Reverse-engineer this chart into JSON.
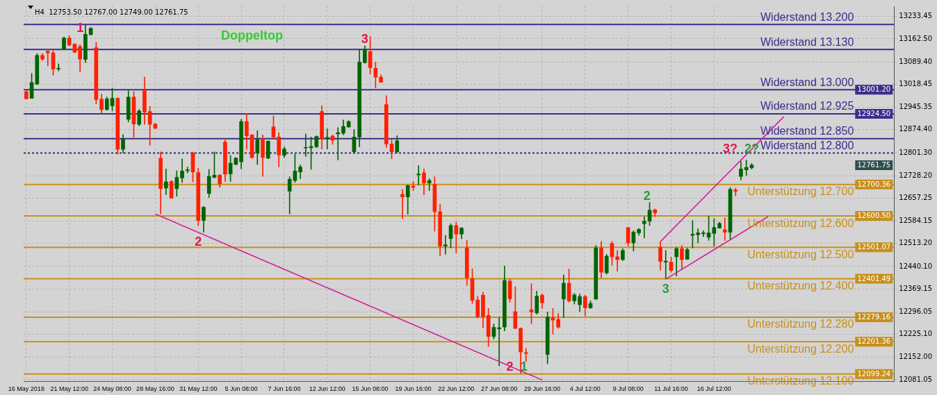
{
  "chart_data": {
    "type": "candlestick",
    "categories": [
      "16 May 2018",
      null,
      null,
      null,
      null,
      null,
      null,
      null,
      "21 May 12:00",
      null,
      null,
      null,
      null,
      null,
      null,
      null,
      "24 May 08:00",
      null,
      null,
      null,
      null,
      null,
      null,
      null,
      "28 May 16:00",
      null,
      null,
      null,
      null,
      null,
      null,
      null,
      "31 May 12:00",
      null,
      null,
      null,
      null,
      null,
      null,
      null,
      "5 Jun 08:00",
      null,
      null,
      null,
      null,
      null,
      null,
      null,
      "7 Jun 16:00",
      null,
      null,
      null,
      null,
      null,
      null,
      null,
      "12 Jun 12:00",
      null,
      null,
      null,
      null,
      null,
      null,
      null,
      "15 Jun 08:00",
      null,
      null,
      null,
      null,
      null,
      null,
      null,
      "19 Jun 16:00",
      null,
      null,
      null,
      null,
      null,
      null,
      null,
      "22 Jun 12:00",
      null,
      null,
      null,
      null,
      null,
      null,
      null,
      "27 Jun 08:00",
      null,
      null,
      null,
      null,
      null,
      null,
      null,
      "29 Jun 16:00",
      null,
      null,
      null,
      null,
      null,
      null,
      null,
      "4 Jul 12:00",
      null,
      null,
      null,
      null,
      null,
      null,
      null,
      "9 Jul 08:00",
      null,
      null,
      null,
      null,
      null,
      null,
      null,
      "11 Jul 16:00",
      null,
      null,
      null,
      null,
      null,
      null,
      null,
      "16 Jul 12:00",
      null,
      null,
      null,
      null,
      null,
      null,
      null,
      null,
      null,
      null,
      null,
      null,
      null,
      null,
      null,
      null,
      null,
      null,
      null,
      null,
      null,
      null,
      null,
      null,
      null,
      null,
      null,
      null,
      null,
      null,
      null,
      null,
      null
    ],
    "ohlc": [
      [
        12995,
        12999,
        12972,
        12972
      ],
      [
        12974,
        13053,
        12974,
        13024
      ],
      [
        13019,
        13116,
        13017,
        13110
      ],
      [
        13110,
        13116,
        13093,
        13098
      ],
      [
        13123,
        13128,
        13077,
        13118
      ],
      [
        13118,
        13126,
        13047,
        13067
      ],
      [
        13067,
        13083,
        13061,
        13069
      ],
      [
        13130,
        13169,
        13128,
        13165
      ],
      [
        13165,
        13173,
        13140,
        13143
      ],
      [
        13146,
        13148,
        13118,
        13120
      ],
      [
        13138,
        13144,
        13057,
        13098
      ],
      [
        13097,
        13206,
        13087,
        13177
      ],
      [
        13176,
        13199,
        13174,
        13196
      ],
      [
        13134,
        13152,
        12956,
        12970
      ],
      [
        12972,
        12987,
        12926,
        12938
      ],
      [
        12938,
        12978,
        12936,
        12972
      ],
      [
        12950,
        13006,
        12934,
        12974
      ],
      [
        12974,
        12976,
        12797,
        12812
      ],
      [
        12812,
        12859,
        12800,
        12845
      ],
      [
        12907,
        12998,
        12899,
        12978
      ],
      [
        12978,
        12995,
        12851,
        12892
      ],
      [
        12891,
        12938,
        12887,
        12934
      ],
      [
        12998,
        13041,
        12891,
        12930
      ],
      [
        12932,
        12948,
        12825,
        12891
      ],
      [
        12892,
        12895,
        12877,
        12879
      ],
      [
        12784,
        12804,
        12607,
        12687
      ],
      [
        12689,
        12750,
        12668,
        12709
      ],
      [
        12710,
        12713,
        12657,
        12657
      ],
      [
        12687,
        12744,
        12663,
        12723
      ],
      [
        12721,
        12782,
        12707,
        12743
      ],
      [
        12744,
        12756,
        12737,
        12747
      ],
      [
        12800,
        12804,
        12709,
        12740
      ],
      [
        12738,
        12752,
        12570,
        12586
      ],
      [
        12586,
        12631,
        12549,
        12628
      ],
      [
        12672,
        12748,
        12659,
        12726
      ],
      [
        12723,
        12804,
        12721,
        12730
      ],
      [
        12730,
        12733,
        12691,
        12703
      ],
      [
        12835,
        12847,
        12710,
        12733
      ],
      [
        12734,
        12793,
        12710,
        12768
      ],
      [
        12764,
        12786,
        12763,
        12784
      ],
      [
        12772,
        12908,
        12750,
        12900
      ],
      [
        12900,
        12926,
        12812,
        12855
      ],
      [
        12858,
        12859,
        12784,
        12786
      ],
      [
        12800,
        12871,
        12764,
        12843
      ],
      [
        12843,
        12858,
        12726,
        12786
      ],
      [
        12784,
        12839,
        12782,
        12838
      ],
      [
        12883,
        12918,
        12847,
        12851
      ],
      [
        12851,
        12865,
        12756,
        12794
      ],
      [
        12793,
        12820,
        12786,
        12813
      ],
      [
        12679,
        12725,
        12607,
        12717
      ],
      [
        12713,
        12797,
        12707,
        12743
      ],
      [
        12740,
        12763,
        12719,
        12756
      ],
      [
        12816,
        12861,
        12789,
        12818
      ],
      [
        12817,
        12851,
        12748,
        12821
      ],
      [
        12820,
        12855,
        12817,
        12853
      ],
      [
        12932,
        12950,
        12813,
        12845
      ],
      [
        12847,
        12877,
        12813,
        12850
      ],
      [
        12854,
        12858,
        12828,
        12841
      ],
      [
        12861,
        12881,
        12778,
        12865
      ],
      [
        12863,
        12905,
        12858,
        12885
      ],
      [
        12883,
        12903,
        12881,
        12900
      ],
      [
        12804,
        12875,
        12800,
        12851
      ],
      [
        12851,
        13127,
        12820,
        13089
      ],
      [
        13087,
        13140,
        13085,
        13128
      ],
      [
        13122,
        13170,
        13051,
        13071
      ],
      [
        13069,
        13089,
        13007,
        13041
      ],
      [
        13041,
        13049,
        13024,
        13025
      ],
      [
        12954,
        12982,
        12818,
        12829
      ],
      [
        12829,
        12843,
        12782,
        12804
      ],
      [
        12804,
        12855,
        12802,
        12839
      ],
      [
        12669,
        12685,
        12592,
        12661
      ],
      [
        12661,
        12699,
        12606,
        12697
      ],
      [
        12695,
        12709,
        12681,
        12691
      ],
      [
        12731,
        12760,
        12699,
        12734
      ],
      [
        12737,
        12750,
        12668,
        12705
      ],
      [
        12705,
        12719,
        12681,
        12713
      ],
      [
        12701,
        12725,
        12552,
        12614
      ],
      [
        12614,
        12638,
        12473,
        12505
      ],
      [
        12505,
        12539,
        12479,
        12509
      ],
      [
        12529,
        12576,
        12499,
        12570
      ],
      [
        12570,
        12582,
        12483,
        12543
      ],
      [
        12543,
        12564,
        12528,
        12562
      ],
      [
        12499,
        12523,
        12380,
        12404
      ],
      [
        12402,
        12433,
        12323,
        12333
      ],
      [
        12334,
        12345,
        12277,
        12281
      ],
      [
        12349,
        12359,
        12246,
        12281
      ],
      [
        12285,
        12307,
        12186,
        12218
      ],
      [
        12218,
        12258,
        12210,
        12247
      ],
      [
        12242,
        12278,
        12125,
        12246
      ],
      [
        12248,
        12442,
        12236,
        12396
      ],
      [
        12394,
        12400,
        12327,
        12338
      ],
      [
        12297,
        12376,
        12242,
        12244
      ],
      [
        12244,
        12246,
        12101,
        12169
      ],
      [
        12167,
        12180,
        12139,
        12164
      ],
      [
        12303,
        12386,
        12259,
        12296
      ],
      [
        12293,
        12362,
        12289,
        12346
      ],
      [
        12349,
        12354,
        12307,
        12325
      ],
      [
        12161,
        12296,
        12131,
        12280
      ],
      [
        12277,
        12307,
        12226,
        12270
      ],
      [
        12272,
        12291,
        12244,
        12248
      ],
      [
        12337,
        12414,
        12278,
        12387
      ],
      [
        12387,
        12432,
        12327,
        12331
      ],
      [
        12331,
        12355,
        12321,
        12350
      ],
      [
        12319,
        12353,
        12297,
        12345
      ],
      [
        12345,
        12349,
        12283,
        12309
      ],
      [
        12309,
        12331,
        12307,
        12323
      ],
      [
        12337,
        12507,
        12335,
        12499
      ],
      [
        12499,
        12520,
        12404,
        12422
      ],
      [
        12420,
        12479,
        12416,
        12473
      ],
      [
        12513,
        12520,
        12444,
        12471
      ],
      [
        12471,
        12491,
        12425,
        12462
      ],
      [
        12462,
        12497,
        12459,
        12491
      ],
      [
        12564,
        12564,
        12505,
        12515
      ],
      [
        12515,
        12554,
        12489,
        12549
      ],
      [
        12547,
        12561,
        12539,
        12558
      ],
      [
        12576,
        12598,
        12531,
        12584
      ],
      [
        12584,
        12643,
        12570,
        12619
      ],
      [
        12620,
        12623,
        12598,
        12610
      ],
      [
        12501,
        12519,
        12428,
        12456
      ],
      [
        12454,
        12491,
        12402,
        12457
      ],
      [
        12454,
        12470,
        12422,
        12428
      ],
      [
        12471,
        12501,
        12410,
        12497
      ],
      [
        12497,
        12507,
        12430,
        12462
      ],
      [
        12463,
        12499,
        12462,
        12494
      ],
      [
        12539,
        12586,
        12499,
        12543
      ],
      [
        12541,
        12560,
        12515,
        12547
      ],
      [
        12544,
        12554,
        12535,
        12547
      ],
      [
        12533,
        12600,
        12523,
        12547
      ],
      [
        12545,
        12592,
        12505,
        12564
      ],
      [
        12562,
        12581,
        12561,
        12577
      ],
      [
        12557,
        12594,
        12523,
        12549
      ],
      [
        12549,
        12691,
        12527,
        12685
      ],
      [
        12683,
        12689,
        12664,
        12679
      ],
      [
        12726,
        12774,
        12715,
        12750
      ],
      [
        12747,
        12778,
        12729,
        12755
      ],
      [
        12753.5,
        12767,
        12749,
        12761.75
      ],
      null,
      null,
      null,
      null,
      null,
      null,
      null,
      null,
      null,
      null,
      null,
      null,
      null,
      null,
      null,
      null,
      null,
      null,
      null,
      null,
      null,
      null,
      null,
      null,
      null,
      null
    ],
    "colors": [
      "#ff2000",
      "#006400",
      "#006400",
      "#ff2000",
      "#ff2000",
      "#ff2000",
      "#006400",
      "#006400",
      "#ff2000",
      "#ff2000",
      "#ff2000",
      "#006400",
      "#006400",
      "#ff2000",
      "#ff2000",
      "#006400",
      "#006400",
      "#ff2000",
      "#006400",
      "#006400",
      "#ff2000",
      "#006400",
      "#ff2000",
      "#ff2000",
      "#ff2000",
      "#ff2000",
      "#006400",
      "#ff2000",
      "#006400",
      "#006400",
      "#006400",
      "#ff2000",
      "#ff2000",
      "#006400",
      "#006400",
      "#006400",
      "#ff2000",
      "#ff2000",
      "#006400",
      "#006400",
      "#006400",
      "#ff2000",
      "#ff2000",
      "#006400",
      "#ff2000",
      "#006400",
      "#ff2000",
      "#ff2000",
      "#006400",
      "#006400",
      "#006400",
      "#006400",
      "#006400",
      "#006400",
      "#006400",
      "#ff2000",
      "#006400",
      "#ff2000",
      "#006400",
      "#006400",
      "#006400",
      "#006400",
      "#006400",
      "#006400",
      "#ff2000",
      "#ff2000",
      "#ff2000",
      "#ff2000",
      "#ff2000",
      "#006400",
      "#ff2000",
      "#006400",
      "#ff2000",
      "#006400",
      "#ff2000",
      "#006400",
      "#ff2000",
      "#ff2000",
      "#006400",
      "#006400",
      "#ff2000",
      "#006400",
      "#ff2000",
      "#ff2000",
      "#ff2000",
      "#ff2000",
      "#ff2000",
      "#006400",
      "#006400",
      "#006400",
      "#ff2000",
      "#ff2000",
      "#ff2000",
      "#ff2000",
      "#ff2000",
      "#006400",
      "#ff2000",
      "#006400",
      "#ff2000",
      "#ff2000",
      "#006400",
      "#ff2000",
      "#006400",
      "#006400",
      "#ff2000",
      "#006400",
      "#006400",
      "#ff2000",
      "#006400",
      "#ff2000",
      "#ff2000",
      "#006400",
      "#ff2000",
      "#006400",
      "#006400",
      "#006400",
      "#006400",
      "#ff2000",
      "#ff2000",
      "#006400",
      "#ff2000",
      "#006400",
      "#ff2000",
      "#006400",
      "#006400",
      "#006400",
      "#006400",
      "#006400",
      "#006400",
      "#006400",
      "#ff2000",
      "#006400",
      "#ff2000",
      "#006400",
      "#006400",
      "#006400",
      null,
      null,
      null,
      null,
      null,
      null,
      null,
      null,
      null,
      null,
      null,
      null,
      null,
      null,
      null,
      null,
      null,
      null,
      null,
      null,
      null,
      null,
      null,
      null,
      null,
      null
    ],
    "series": [
      {
        "type": "line",
        "color": "#d4209a",
        "values": [
          null,
          null,
          null,
          null,
          null,
          null,
          null,
          null,
          null,
          null,
          null,
          null,
          null,
          null,
          null,
          null,
          null,
          null,
          null,
          null,
          null,
          null,
          null,
          null,
          12607,
          null,
          null,
          null,
          null,
          null,
          null,
          null,
          null,
          null,
          null,
          null,
          null,
          null,
          null,
          null,
          null,
          null,
          null,
          null,
          null,
          null,
          null,
          null,
          null,
          null,
          null,
          null,
          null,
          null,
          null,
          null,
          null,
          null,
          null,
          null,
          null,
          null,
          null,
          null,
          null,
          null,
          null,
          null,
          null,
          null,
          null,
          null,
          null,
          null,
          null,
          null,
          null,
          null,
          null,
          null,
          null,
          null,
          null,
          null,
          null,
          null,
          null,
          null,
          null,
          null,
          null,
          null,
          null,
          null,
          null,
          null,
          12080,
          null,
          null,
          null,
          null,
          null,
          null,
          null,
          null,
          null,
          null,
          null,
          null,
          null,
          null,
          null,
          null,
          null,
          null,
          null,
          null,
          null,
          null,
          null,
          null,
          null,
          null,
          null,
          null,
          null,
          null,
          null,
          null,
          null,
          null,
          null,
          null,
          null,
          null,
          null,
          null,
          null,
          null,
          null,
          null,
          null,
          null,
          null,
          null,
          null,
          null,
          null,
          null,
          null,
          null,
          null,
          null,
          null,
          null,
          null,
          null,
          null,
          null,
          null,
          null,
          null
        ]
      },
      {
        "type": "line",
        "color": "#d4209a",
        "values": [
          null,
          null,
          null,
          null,
          null,
          null,
          null,
          null,
          null,
          null,
          null,
          null,
          null,
          null,
          null,
          null,
          null,
          null,
          null,
          null,
          null,
          null,
          null,
          null,
          null,
          null,
          null,
          null,
          null,
          null,
          null,
          null,
          null,
          null,
          null,
          null,
          null,
          null,
          null,
          null,
          null,
          null,
          null,
          null,
          null,
          null,
          null,
          null,
          null,
          null,
          null,
          null,
          null,
          null,
          null,
          null,
          null,
          null,
          null,
          null,
          null,
          null,
          null,
          null,
          null,
          null,
          null,
          null,
          null,
          null,
          null,
          null,
          null,
          null,
          null,
          null,
          null,
          null,
          null,
          null,
          null,
          null,
          null,
          null,
          null,
          null,
          null,
          null,
          null,
          null,
          null,
          null,
          null,
          null,
          null,
          null,
          null,
          null,
          null,
          null,
          null,
          null,
          null,
          null,
          null,
          null,
          null,
          null,
          null,
          null,
          null,
          null,
          null,
          null,
          null,
          null,
          null,
          null,
          12519,
          null,
          null,
          null,
          null,
          null,
          null,
          null,
          null,
          null,
          null,
          null,
          null,
          null,
          null,
          null,
          null,
          null,
          null,
          null,
          null,
          null,
          null,
          12916,
          null,
          null,
          null,
          null,
          null,
          null,
          null,
          null,
          null,
          null,
          null,
          null,
          null,
          null,
          null,
          null,
          null,
          null,
          null,
          null
        ]
      },
      {
        "type": "line",
        "color": "#d4209a",
        "values": [
          null,
          null,
          null,
          null,
          null,
          null,
          null,
          null,
          null,
          null,
          null,
          null,
          null,
          null,
          null,
          null,
          null,
          null,
          null,
          null,
          null,
          null,
          null,
          null,
          null,
          null,
          null,
          null,
          null,
          null,
          null,
          null,
          null,
          null,
          null,
          null,
          null,
          null,
          null,
          null,
          null,
          null,
          null,
          null,
          null,
          null,
          null,
          null,
          null,
          null,
          null,
          null,
          null,
          null,
          null,
          null,
          null,
          null,
          null,
          null,
          null,
          null,
          null,
          null,
          null,
          null,
          null,
          null,
          null,
          null,
          null,
          null,
          null,
          null,
          null,
          null,
          null,
          null,
          null,
          null,
          null,
          null,
          null,
          null,
          null,
          null,
          null,
          null,
          null,
          null,
          null,
          null,
          null,
          null,
          null,
          null,
          null,
          null,
          null,
          null,
          null,
          null,
          null,
          null,
          null,
          null,
          null,
          null,
          null,
          null,
          null,
          null,
          null,
          null,
          null,
          null,
          null,
          null,
          null,
          12400,
          null,
          null,
          null,
          null,
          null,
          null,
          null,
          null,
          null,
          null,
          null,
          null,
          null,
          null,
          null,
          null,
          null,
          null,
          12598,
          null,
          null,
          null,
          null,
          null,
          null,
          null,
          null,
          null,
          null,
          null,
          null,
          null,
          null,
          null,
          null,
          null,
          null,
          null,
          null,
          null,
          null,
          null
        ]
      }
    ],
    "ylim": [
      12076,
      13266
    ],
    "yticks": [
      {
        "value": 13233.45,
        "label": "13233.45"
      },
      {
        "value": 13162.5,
        "label": "13162.50"
      },
      {
        "value": 13089.4,
        "label": "13089.40"
      },
      {
        "value": 13018.45,
        "label": "13018.45"
      },
      {
        "value": 12945.35,
        "label": "12945.35"
      },
      {
        "value": 12874.4,
        "label": "12874.40"
      },
      {
        "value": 12801.3,
        "label": "12801.30"
      },
      {
        "value": 12728.2,
        "label": "12728.20"
      },
      {
        "value": 12657.25,
        "label": "12657.25"
      },
      {
        "value": 12584.15,
        "label": "12584.15"
      },
      {
        "value": 12513.2,
        "label": "12513.20"
      },
      {
        "value": 12440.1,
        "label": "12440.10"
      },
      {
        "value": 12369.15,
        "label": "12369.15"
      },
      {
        "value": 12296.05,
        "label": "12296.05"
      },
      {
        "value": 12225.1,
        "label": "12225.10"
      },
      {
        "value": 12152,
        "label": "12152.00"
      },
      {
        "value": 12081.05,
        "label": "12081.05"
      }
    ],
    "grid": true,
    "ref_lines": [
      {
        "axis": "y",
        "value": 13208,
        "label": "Widerstand 13.200",
        "color": "#3a2e8c"
      },
      {
        "axis": "y",
        "value": 13129,
        "label": "Widerstand 13.130",
        "color": "#3a2e8c"
      },
      {
        "axis": "y",
        "value": 13001.2,
        "label": "Widerstand 13.000",
        "color": "#3a2e8c"
      },
      {
        "axis": "y",
        "value": 12924.5,
        "label": "Widerstand 12.925",
        "color": "#3a2e8c"
      },
      {
        "axis": "y",
        "value": 12846,
        "label": "Widerstand 12.850",
        "color": "#3a2e8c"
      },
      {
        "axis": "y",
        "value": 12800,
        "label": "Widerstand 12.800",
        "color": "#3a2e8c",
        "line_style": "dashed"
      },
      {
        "axis": "y",
        "value": 12700.36,
        "label": "Unterstützung 12.700",
        "color": "#c8901a"
      },
      {
        "axis": "y",
        "value": 12600.5,
        "label": "Unterstützung 12.600",
        "color": "#c8901a"
      },
      {
        "axis": "y",
        "value": 12501.07,
        "label": "Unterstützung 12.500",
        "color": "#c8901a"
      },
      {
        "axis": "y",
        "value": 12401.49,
        "label": "Unterstützung 12.400",
        "color": "#c8901a"
      },
      {
        "axis": "y",
        "value": 12279.16,
        "label": "Unterstützung 12.280",
        "color": "#c8901a"
      },
      {
        "axis": "y",
        "value": 12201.36,
        "label": "Unterstützung 12.200",
        "color": "#c8901a"
      },
      {
        "axis": "y",
        "value": 12099.24,
        "label": "Unterstützung 12.100",
        "color": "#c8901a"
      }
    ],
    "annotations": [
      "H4  12753.50 12767.00 12749.00 12761.75",
      "Doppeltop",
      "1",
      "2",
      "3",
      "2",
      "1",
      "2",
      "3",
      "3?",
      "2?",
      {
        "text": "13001.20",
        "y": 13001.2
      },
      {
        "text": "12924.50",
        "y": 12924.5
      },
      "12761.75",
      {
        "text": "12700.36",
        "y": 12700.36
      },
      {
        "text": "12600.50",
        "y": 12600.5
      },
      {
        "text": "12501.07",
        "y": 12501.07
      },
      {
        "text": "12401.49",
        "y": 12401.49
      },
      {
        "text": "12279.16",
        "y": 12279.16
      },
      {
        "text": "12201.36",
        "y": 12201.36
      },
      {
        "text": "12099.24",
        "y": 12099.24
      }
    ]
  }
}
